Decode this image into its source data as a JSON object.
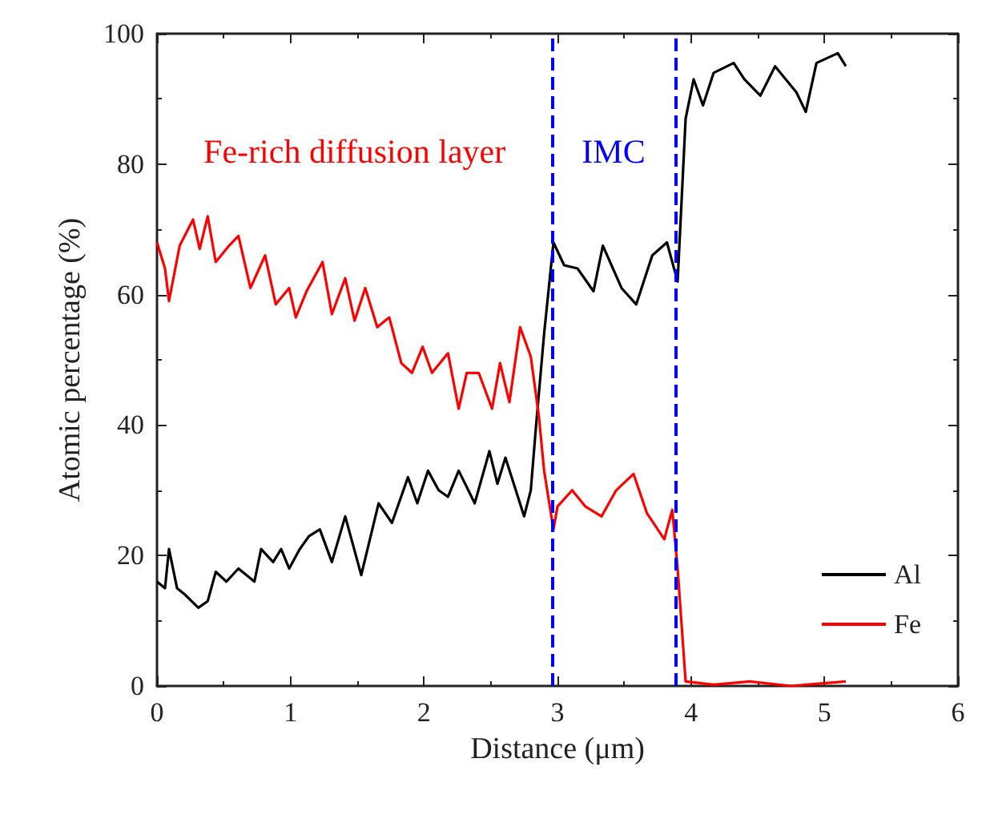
{
  "chart_data": {
    "type": "line",
    "xlabel": "Distance (μm)",
    "ylabel": "Atomic percentage (%)",
    "xlim": [
      0,
      6
    ],
    "xticks": [
      0,
      1,
      2,
      3,
      4,
      5,
      6
    ],
    "ylim": [
      0,
      100
    ],
    "yticks": [
      0,
      20,
      40,
      60,
      80,
      100
    ],
    "grid": false,
    "legend": "bottom right",
    "marker": "none",
    "line_style": "solid",
    "series": [
      {
        "name": "Al",
        "color": "#000000",
        "x": [
          0,
          0.06,
          0.09,
          0.15,
          0.21,
          0.31,
          0.38,
          0.44,
          0.52,
          0.61,
          0.73,
          0.78,
          0.87,
          0.93,
          0.99,
          1.07,
          1.14,
          1.22,
          1.31,
          1.41,
          1.53,
          1.66,
          1.76,
          1.88,
          1.95,
          2.03,
          2.11,
          2.18,
          2.26,
          2.38,
          2.49,
          2.55,
          2.61,
          2.75,
          2.8,
          2.84,
          2.9,
          2.97,
          3.05,
          3.15,
          3.27,
          3.34,
          3.48,
          3.59,
          3.71,
          3.82,
          3.9,
          3.96,
          4.02,
          4.09,
          4.17,
          4.32,
          4.4,
          4.52,
          4.63,
          4.79,
          4.86,
          4.94,
          5.1,
          5.16
        ],
        "values": [
          16,
          15,
          21,
          15,
          14,
          12,
          13,
          17.5,
          16,
          18,
          16,
          21,
          19,
          21,
          18,
          21,
          23,
          24,
          19,
          26,
          17,
          28,
          25,
          32,
          28,
          33,
          30,
          29,
          33,
          28,
          36,
          31,
          35,
          26,
          30,
          40,
          54,
          68,
          64.5,
          64,
          60.5,
          67.5,
          61,
          58.5,
          66,
          68,
          62,
          87,
          93,
          89,
          94,
          95.5,
          93,
          90.5,
          95,
          91,
          88,
          95.5,
          97,
          95
        ]
      },
      {
        "name": "Fe",
        "color": "#ff0000",
        "x": [
          0,
          0.06,
          0.09,
          0.17,
          0.27,
          0.32,
          0.38,
          0.44,
          0.54,
          0.61,
          0.7,
          0.81,
          0.89,
          0.99,
          1.04,
          1.12,
          1.24,
          1.31,
          1.41,
          1.48,
          1.56,
          1.65,
          1.74,
          1.83,
          1.91,
          1.99,
          2.06,
          2.18,
          2.26,
          2.32,
          2.41,
          2.51,
          2.57,
          2.64,
          2.72,
          2.8,
          2.86,
          2.9,
          2.97,
          3.0,
          3.11,
          3.21,
          3.33,
          3.44,
          3.57,
          3.67,
          3.8,
          3.86,
          3.9,
          3.96,
          4.17,
          4.44,
          4.75,
          5.16
        ],
        "values": [
          68,
          64,
          59,
          67.5,
          71.5,
          67,
          72,
          65,
          67.5,
          69,
          61,
          66,
          58.5,
          61,
          56.5,
          60.5,
          65,
          57,
          62.5,
          56,
          61,
          55,
          56.5,
          49.5,
          48,
          52,
          48,
          51,
          42.5,
          48,
          48,
          42.5,
          49.5,
          43.5,
          55,
          50.5,
          41.5,
          33,
          24,
          27.5,
          30,
          27.5,
          26,
          30,
          32.5,
          26.5,
          22.5,
          27,
          18,
          0.7,
          0.2,
          0.7,
          0,
          0.7
        ]
      }
    ],
    "ref_lines": [
      {
        "axis": "x",
        "value": 2.96,
        "color": "#0000ff",
        "line_style": "dashed"
      },
      {
        "axis": "x",
        "value": 3.88,
        "color": "#0000ff",
        "line_style": "dashed"
      }
    ],
    "annotations": [
      "Fe-rich diffusion layer",
      "IMC"
    ]
  }
}
